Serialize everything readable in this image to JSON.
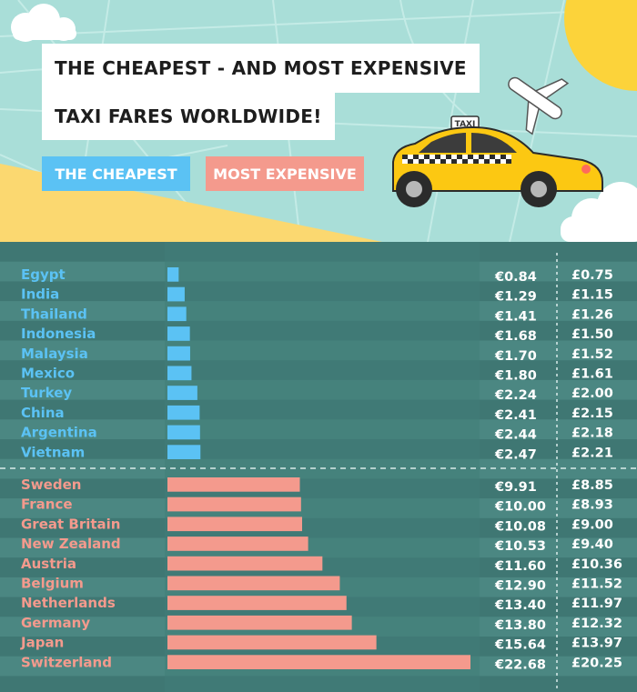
{
  "header": {
    "title_line1": "THE CHEAPEST - AND MOST EXPENSIVE",
    "title_line2": "TAXI FARES WORLDWIDE!",
    "taxi_sign": "TAXI",
    "legend": [
      {
        "label": "THE CHEAPEST",
        "color": "#5bc2f4"
      },
      {
        "label": "MOST EXPENSIVE",
        "color": "#f49a8d"
      }
    ]
  },
  "colors": {
    "cheap": "#5bc2f4",
    "expensive": "#f49a8d",
    "stripe_dark": "#3f7773",
    "stripe_light": "#4b8782",
    "bar_track": "#427e79"
  },
  "chart_data": {
    "type": "bar",
    "orientation": "horizontal",
    "groups": [
      {
        "name": "THE CHEAPEST",
        "color": "#5bc2f4",
        "rows": [
          {
            "country": "Egypt",
            "eur": 0.84,
            "eur_label": "€0.84",
            "gbp_label": "£0.75"
          },
          {
            "country": "India",
            "eur": 1.29,
            "eur_label": "€1.29",
            "gbp_label": "£1.15"
          },
          {
            "country": "Thailand",
            "eur": 1.41,
            "eur_label": "€1.41",
            "gbp_label": "£1.26"
          },
          {
            "country": "Indonesia",
            "eur": 1.68,
            "eur_label": "€1.68",
            "gbp_label": "£1.50"
          },
          {
            "country": "Malaysia",
            "eur": 1.7,
            "eur_label": "€1.70",
            "gbp_label": "£1.52"
          },
          {
            "country": "Mexico",
            "eur": 1.8,
            "eur_label": "€1.80",
            "gbp_label": "£1.61"
          },
          {
            "country": "Turkey",
            "eur": 2.24,
            "eur_label": "€2.24",
            "gbp_label": "£2.00"
          },
          {
            "country": "China",
            "eur": 2.41,
            "eur_label": "€2.41",
            "gbp_label": "£2.15"
          },
          {
            "country": "Argentina",
            "eur": 2.44,
            "eur_label": "€2.44",
            "gbp_label": "£2.18"
          },
          {
            "country": "Vietnam",
            "eur": 2.47,
            "eur_label": "€2.47",
            "gbp_label": "£2.21"
          }
        ]
      },
      {
        "name": "MOST EXPENSIVE",
        "color": "#f49a8d",
        "rows": [
          {
            "country": "Sweden",
            "eur": 9.91,
            "eur_label": "€9.91",
            "gbp_label": "£8.85"
          },
          {
            "country": "France",
            "eur": 10.0,
            "eur_label": "€10.00",
            "gbp_label": "£8.93"
          },
          {
            "country": "Great Britain",
            "eur": 10.08,
            "eur_label": "€10.08",
            "gbp_label": "£9.00"
          },
          {
            "country": "New Zealand",
            "eur": 10.53,
            "eur_label": "€10.53",
            "gbp_label": "£9.40"
          },
          {
            "country": "Austria",
            "eur": 11.6,
            "eur_label": "€11.60",
            "gbp_label": "£10.36"
          },
          {
            "country": "Belgium",
            "eur": 12.9,
            "eur_label": "€12.90",
            "gbp_label": "£11.52"
          },
          {
            "country": "Netherlands",
            "eur": 13.4,
            "eur_label": "€13.40",
            "gbp_label": "£11.97"
          },
          {
            "country": "Germany",
            "eur": 13.8,
            "eur_label": "€13.80",
            "gbp_label": "£12.32"
          },
          {
            "country": "Japan",
            "eur": 15.64,
            "eur_label": "€15.64",
            "gbp_label": "£13.97"
          },
          {
            "country": "Switzerland",
            "eur": 22.68,
            "eur_label": "€22.68",
            "gbp_label": "£20.25"
          }
        ]
      }
    ],
    "xlim": [
      0,
      22.68
    ]
  }
}
